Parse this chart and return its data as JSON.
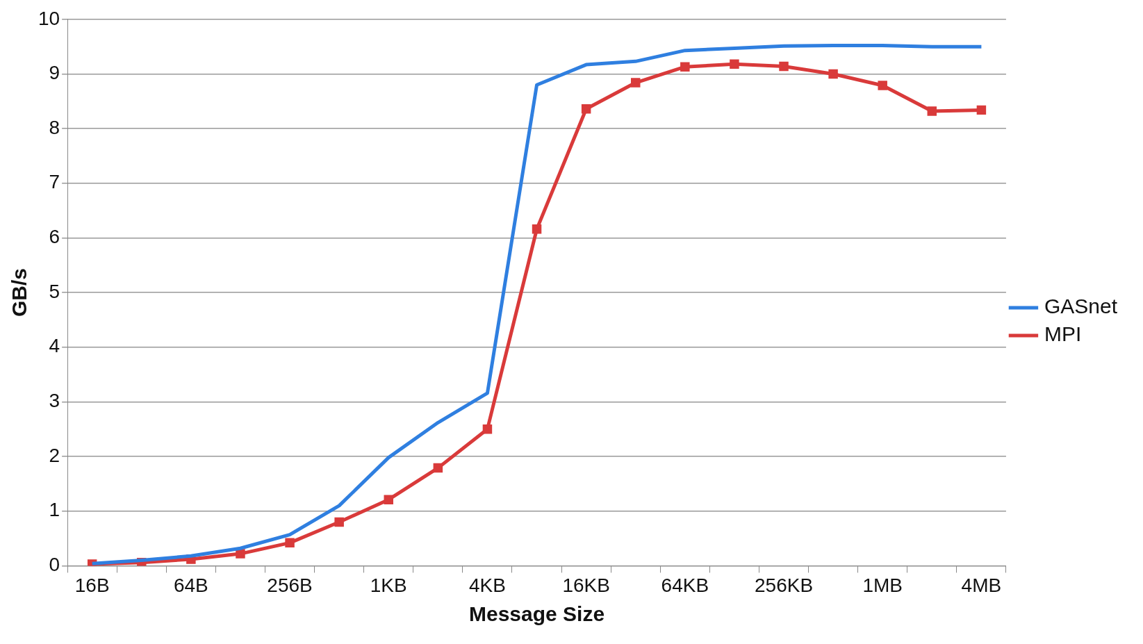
{
  "chart_data": {
    "type": "line",
    "xlabel": "Message Size",
    "ylabel": "GB/s",
    "categories": [
      "16B",
      null,
      "64B",
      null,
      "256B",
      null,
      "1KB",
      null,
      "4KB",
      null,
      "16KB",
      null,
      "64KB",
      null,
      "256KB",
      null,
      "1MB",
      null,
      "4MB"
    ],
    "series": [
      {
        "name": "GASnet",
        "color": "#2f7fe0",
        "marker": "none",
        "values": [
          0.04,
          0.1,
          0.18,
          0.32,
          0.57,
          1.1,
          1.98,
          2.62,
          3.16,
          8.8,
          9.17,
          9.23,
          9.43,
          9.47,
          9.51,
          9.52,
          9.52,
          9.5,
          9.5
        ]
      },
      {
        "name": "MPI",
        "color": "#d93a3a",
        "marker": "square",
        "values": [
          0.03,
          0.06,
          0.12,
          0.22,
          0.42,
          0.8,
          1.21,
          1.79,
          2.5,
          6.16,
          8.36,
          8.84,
          9.13,
          9.18,
          9.14,
          9.0,
          8.79,
          8.32,
          8.34
        ]
      }
    ],
    "ylim": [
      0,
      10
    ],
    "yticks": [
      0,
      1,
      2,
      3,
      4,
      5,
      6,
      7,
      8,
      9,
      10
    ],
    "grid": "y",
    "legend": "right"
  }
}
